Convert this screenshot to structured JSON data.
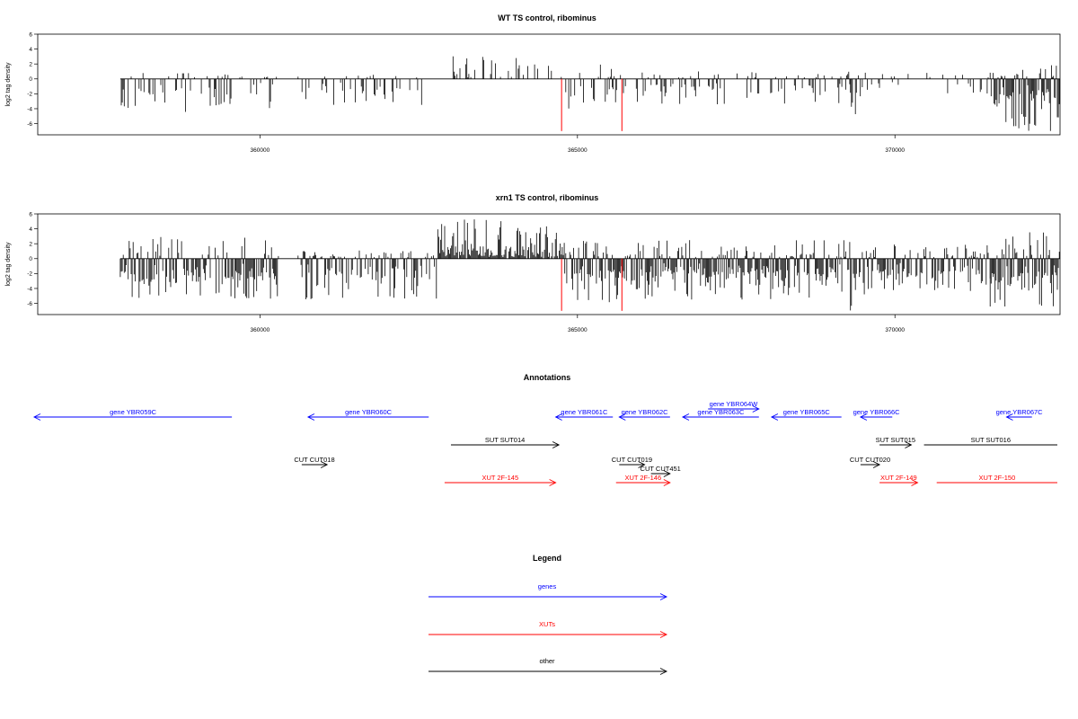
{
  "colors": {
    "genes": "#0000ff",
    "xuts": "#ff0000",
    "other": "#000000",
    "highlight": "#ff0000",
    "bars": "#000000"
  },
  "chart_data": [
    {
      "type": "bar",
      "title": "WT TS control, ribominus",
      "ylabel": "log2 tag density",
      "xlim": [
        356500,
        372600
      ],
      "ylim": [
        -7.5,
        6
      ],
      "yticks": [
        -6,
        -4,
        -2,
        0,
        2,
        4,
        6
      ],
      "xticks": [
        360000,
        365000,
        370000
      ],
      "xtick_labels": [
        "360000",
        "365000",
        "370000"
      ],
      "grid": false,
      "highlight_x": [
        364750,
        365700
      ],
      "highlight_values": [
        -7,
        -7
      ],
      "profile": [
        {
          "x": [
            357800,
            360300
          ],
          "min": -4.5,
          "max": 1.0,
          "fill": 0.35
        },
        {
          "x": [
            360300,
            360600
          ],
          "min": 0,
          "max": 0,
          "fill": 0
        },
        {
          "x": [
            360600,
            362600
          ],
          "min": -3.5,
          "max": 0.5,
          "fill": 0.3
        },
        {
          "x": [
            362600,
            362900
          ],
          "min": 0,
          "max": 0,
          "fill": 0
        },
        {
          "x": [
            362900,
            364200
          ],
          "min": -0.5,
          "max": 3.5,
          "fill": 0.25
        },
        {
          "x": [
            364200,
            364800
          ],
          "min": -1,
          "max": 2,
          "fill": 0.2
        },
        {
          "x": [
            364800,
            365600
          ],
          "min": -4.5,
          "max": 2,
          "fill": 0.4
        },
        {
          "x": [
            365600,
            369300
          ],
          "min": -3.5,
          "max": 1,
          "fill": 0.3
        },
        {
          "x": [
            369300,
            369600
          ],
          "min": -5.5,
          "max": 1,
          "fill": 0.4
        },
        {
          "x": [
            369600,
            371500
          ],
          "min": -2,
          "max": 1,
          "fill": 0.2
        },
        {
          "x": [
            371500,
            372600
          ],
          "min": -7,
          "max": 2,
          "fill": 0.95
        }
      ]
    },
    {
      "type": "bar",
      "title": "xrn1 TS control, ribominus",
      "ylabel": "log2 tag density",
      "xlim": [
        356500,
        372600
      ],
      "ylim": [
        -7.5,
        6
      ],
      "yticks": [
        -6,
        -4,
        -2,
        0,
        2,
        4,
        6
      ],
      "xticks": [
        360000,
        365000,
        370000
      ],
      "xtick_labels": [
        "360000",
        "365000",
        "370000"
      ],
      "grid": false,
      "highlight_x": [
        364750,
        365700
      ],
      "highlight_values": [
        -7,
        -7
      ],
      "profile": [
        {
          "x": [
            357800,
            360300
          ],
          "min": -5.5,
          "max": 3.2,
          "fill": 0.85
        },
        {
          "x": [
            360300,
            360600
          ],
          "min": 0,
          "max": 0,
          "fill": 0
        },
        {
          "x": [
            360600,
            362800
          ],
          "min": -5.5,
          "max": 1,
          "fill": 0.6
        },
        {
          "x": [
            362800,
            364800
          ],
          "min": -1,
          "max": 5.5,
          "fill": 0.9
        },
        {
          "x": [
            364800,
            365600
          ],
          "min": -6,
          "max": 2.5,
          "fill": 0.9
        },
        {
          "x": [
            365600,
            369300
          ],
          "min": -5.5,
          "max": 2.5,
          "fill": 0.95
        },
        {
          "x": [
            369300,
            369600
          ],
          "min": -7,
          "max": 2,
          "fill": 0.8
        },
        {
          "x": [
            369600,
            371500
          ],
          "min": -4.5,
          "max": 2,
          "fill": 0.7
        },
        {
          "x": [
            371500,
            372600
          ],
          "min": -6.5,
          "max": 4,
          "fill": 0.95
        }
      ]
    }
  ],
  "annotations": {
    "title": "Annotations",
    "xlim": [
      356500,
      372600
    ],
    "rows": [
      [
        {
          "label": "gene YBR059C",
          "start": 356500,
          "end": 359600,
          "strand": "-",
          "kind": "gene"
        },
        {
          "label": "gene YBR060C",
          "start": 360800,
          "end": 362700,
          "strand": "-",
          "kind": "gene"
        },
        {
          "label": "gene YBR061C",
          "start": 364700,
          "end": 365600,
          "strand": "-",
          "kind": "gene"
        },
        {
          "label": "gene YBR062C",
          "start": 365700,
          "end": 366500,
          "strand": "-",
          "kind": "gene"
        },
        {
          "label": "gene YBR063C",
          "start": 366700,
          "end": 367900,
          "strand": "-",
          "kind": "gene"
        },
        {
          "label": "gene YBR065C",
          "start": 368100,
          "end": 369200,
          "strand": "-",
          "kind": "gene"
        },
        {
          "label": "gene YBR066C",
          "start": 369500,
          "end": 370000,
          "strand": "-",
          "kind": "gene"
        },
        {
          "label": "gene YBR067C",
          "start": 371800,
          "end": 372200,
          "strand": "-",
          "kind": "gene"
        }
      ],
      [
        {
          "label": "gene YBR064W",
          "start": 367100,
          "end": 367900,
          "strand": "+",
          "kind": "gene",
          "offset": -0.55
        }
      ],
      [
        {
          "label": "SUT SUT014",
          "start": 363050,
          "end": 364750,
          "strand": "+",
          "kind": "other"
        },
        {
          "label": "SUT SUT015",
          "start": 369800,
          "end": 370300,
          "strand": "+",
          "kind": "other"
        },
        {
          "label": "SUT SUT016",
          "start": 370500,
          "end": 372600,
          "strand": "",
          "kind": "other"
        }
      ],
      [
        {
          "label": "CUT CUT018",
          "start": 360700,
          "end": 361100,
          "strand": "+",
          "kind": "other"
        },
        {
          "label": "CUT CUT019",
          "start": 365700,
          "end": 366100,
          "strand": "+",
          "kind": "other"
        },
        {
          "label": "CUT CUT020",
          "start": 369500,
          "end": 369800,
          "strand": "+",
          "kind": "other"
        }
      ],
      [
        {
          "label": "CUT CUT451",
          "start": 366200,
          "end": 366500,
          "strand": "+",
          "kind": "other",
          "offset": 0.45
        }
      ],
      [
        {
          "label": "XUT 2F-145",
          "start": 362950,
          "end": 364700,
          "strand": "+",
          "kind": "xut"
        },
        {
          "label": "XUT 2F-146",
          "start": 365650,
          "end": 366500,
          "strand": "+",
          "kind": "xut"
        },
        {
          "label": "XUT 2F-149",
          "start": 369800,
          "end": 370400,
          "strand": "+",
          "kind": "xut"
        },
        {
          "label": "XUT 2F-150",
          "start": 370700,
          "end": 372600,
          "strand": "",
          "kind": "xut"
        }
      ]
    ]
  },
  "legend": {
    "title": "Legend",
    "items": [
      {
        "label": "genes",
        "kind": "gene"
      },
      {
        "label": "XUTs",
        "kind": "xut"
      },
      {
        "label": "other",
        "kind": "other"
      }
    ]
  }
}
